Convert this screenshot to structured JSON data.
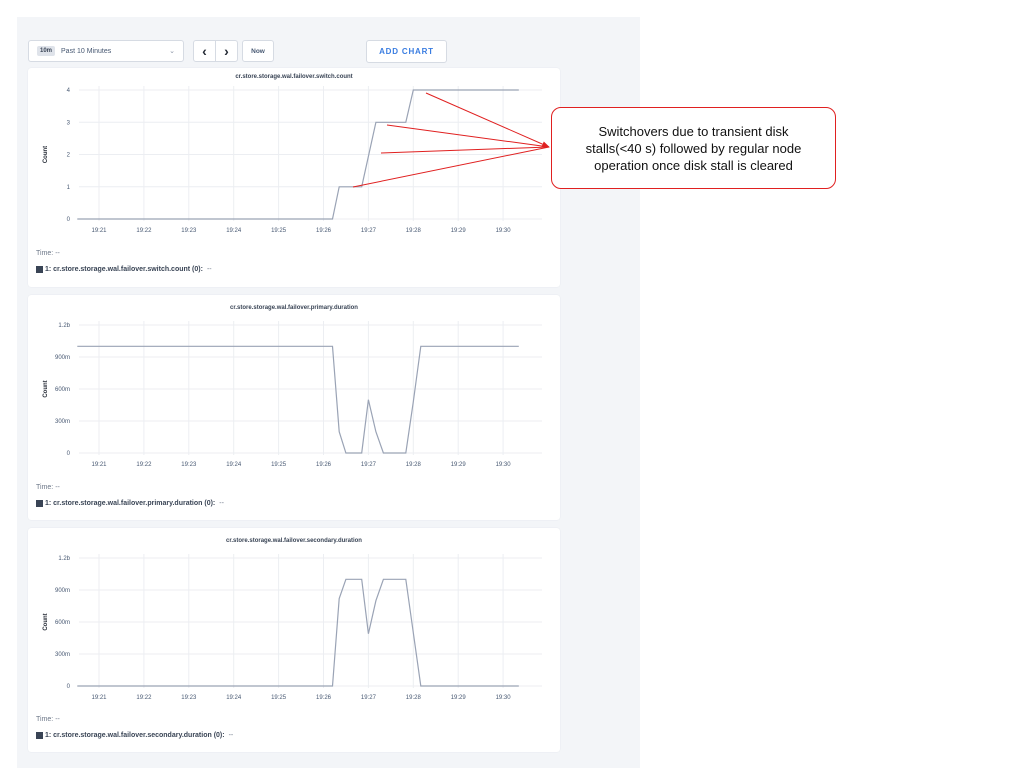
{
  "toolbar": {
    "range_badge": "10m",
    "range_label": "Past 10 Minutes",
    "prev_icon": "chevron-left-icon",
    "next_icon": "chevron-right-icon",
    "now_label": "Now",
    "add_chart_label": "ADD CHART"
  },
  "annotation": {
    "text": "Switchovers due to transient disk stalls(<40 s) followed by regular node operation once disk stall is cleared",
    "color": "#e02020"
  },
  "chart_data": [
    {
      "type": "line",
      "title": "cr.store.storage.wal.failover.switch.count",
      "ylabel": "Count",
      "ylim": [
        0,
        4
      ],
      "yticks": [
        0,
        1,
        2,
        3,
        4
      ],
      "ytick_labels": [
        "0",
        "1",
        "2",
        "3",
        "4"
      ],
      "xtick_labels": [
        "19:21",
        "19:22",
        "19:23",
        "19:24",
        "19:25",
        "19:26",
        "19:27",
        "19:28",
        "19:29",
        "19:30"
      ],
      "grid": true,
      "series": [
        {
          "label": "1: cr.store.storage.wal.failover.switch.count (0):",
          "value": "--",
          "color": "#9aa3b5",
          "x": [
            "19:20:31",
            "19:26:12",
            "19:26:21",
            "19:26:51",
            "19:27:10",
            "19:27:50",
            "19:28:00",
            "19:30:21"
          ],
          "y": [
            0,
            0,
            1,
            1,
            3,
            3,
            4,
            4
          ]
        }
      ],
      "time_label": "Time:",
      "time_value": "--"
    },
    {
      "type": "line",
      "title": "cr.store.storage.wal.failover.primary.duration",
      "ylabel": "Count",
      "ylim": [
        0,
        1.2
      ],
      "yticks": [
        0,
        0.3,
        0.6,
        0.9,
        1.2
      ],
      "ytick_labels": [
        "0",
        "300m",
        "600m",
        "900m",
        "1.2b"
      ],
      "xtick_labels": [
        "19:21",
        "19:22",
        "19:23",
        "19:24",
        "19:25",
        "19:26",
        "19:27",
        "19:28",
        "19:29",
        "19:30"
      ],
      "grid": true,
      "series": [
        {
          "label": "1: cr.store.storage.wal.failover.primary.duration (0):",
          "value": "--",
          "color": "#9aa3b5",
          "x": [
            "19:20:31",
            "19:26:12",
            "19:26:21",
            "19:26:30",
            "19:26:51",
            "19:27:00",
            "19:27:10",
            "19:27:20",
            "19:27:50",
            "19:28:00",
            "19:28:10",
            "19:30:21"
          ],
          "y": [
            1.0,
            1.0,
            0.2,
            0,
            0,
            0.5,
            0.2,
            0,
            0,
            0.48,
            1.0,
            1.0
          ]
        }
      ],
      "time_label": "Time:",
      "time_value": "--"
    },
    {
      "type": "line",
      "title": "cr.store.storage.wal.failover.secondary.duration",
      "ylabel": "Count",
      "ylim": [
        0,
        1.2
      ],
      "yticks": [
        0,
        0.3,
        0.6,
        0.9,
        1.2
      ],
      "ytick_labels": [
        "0",
        "300m",
        "600m",
        "900m",
        "1.2b"
      ],
      "xtick_labels": [
        "19:21",
        "19:22",
        "19:23",
        "19:24",
        "19:25",
        "19:26",
        "19:27",
        "19:28",
        "19:29",
        "19:30"
      ],
      "grid": true,
      "series": [
        {
          "label": "1: cr.store.storage.wal.failover.secondary.duration (0):",
          "value": "--",
          "color": "#9aa3b5",
          "x": [
            "19:20:31",
            "19:26:12",
            "19:26:21",
            "19:26:30",
            "19:26:51",
            "19:27:00",
            "19:27:10",
            "19:27:20",
            "19:27:50",
            "19:28:00",
            "19:28:10",
            "19:30:21"
          ],
          "y": [
            0,
            0,
            0.82,
            1.0,
            1.0,
            0.49,
            0.8,
            1.0,
            1.0,
            0.5,
            0,
            0
          ]
        }
      ],
      "time_label": "Time:",
      "time_value": "--"
    }
  ]
}
